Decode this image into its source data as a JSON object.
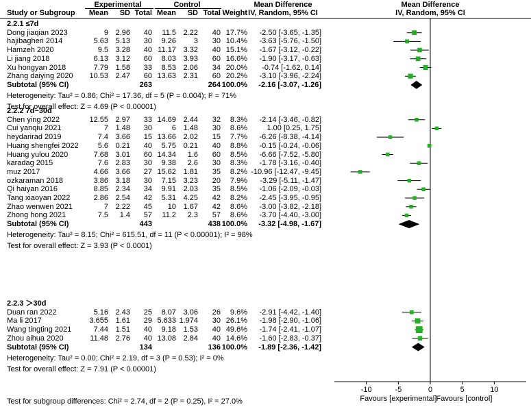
{
  "header": {
    "group_experimental": "Experimental",
    "group_control": "Control",
    "effect_title": "Mean Difference",
    "plot_title": "Mean Difference",
    "col_study": "Study or Subgroup",
    "col_mean_e": "Mean",
    "col_sd_e": "SD",
    "col_total_e": "Total",
    "col_mean_c": "Mean",
    "col_sd_c": "SD",
    "col_total_c": "Total",
    "col_weight": "Weight",
    "col_effect": "IV, Random, 95% CI",
    "col_plot": "IV, Random, 95% CI"
  },
  "subgroups": [
    {
      "title": "2.2.1 ≤7d",
      "studies": [
        {
          "name": "Dong jiaqian 2023",
          "me": "9",
          "sde": "2.96",
          "ne": "40",
          "mc": "11.5",
          "sdc": "2.22",
          "nc": "40",
          "w": "17.7%",
          "ci": "-2.50 [-3.65, -1.35]"
        },
        {
          "name": "hajibagheri 2014",
          "me": "5.63",
          "sde": "5.13",
          "ne": "30",
          "mc": "9.26",
          "sdc": "3",
          "nc": "30",
          "w": "10.4%",
          "ci": "-3.63 [-5.76, -1.50]"
        },
        {
          "name": "Hamzeh 2020",
          "me": "9.5",
          "sde": "3.28",
          "ne": "40",
          "mc": "11.17",
          "sdc": "3.32",
          "nc": "40",
          "w": "15.1%",
          "ci": "-1.67 [-3.12, -0.22]"
        },
        {
          "name": "Li jiang 2018",
          "me": "6.13",
          "sde": "3.12",
          "ne": "60",
          "mc": "8.03",
          "sdc": "3.93",
          "nc": "60",
          "w": "16.6%",
          "ci": "-1.90 [-3.17, -0.63]"
        },
        {
          "name": "Xu hongyan 2018",
          "me": "7.79",
          "sde": "1.58",
          "ne": "33",
          "mc": "8.53",
          "sdc": "2.06",
          "nc": "34",
          "w": "20.0%",
          "ci": "-0.74 [-1.62, 0.14]"
        },
        {
          "name": "Zhang daiying 2020",
          "me": "10.53",
          "sde": "2.47",
          "ne": "60",
          "mc": "13.63",
          "sdc": "2.31",
          "nc": "60",
          "w": "20.2%",
          "ci": "-3.10 [-3.96, -2.24]"
        }
      ],
      "subtotal": {
        "label": "Subtotal (95% CI)",
        "ne": "263",
        "nc": "264",
        "w": "100.0%",
        "ci": "-2.16 [-3.07, -1.26]"
      },
      "heterogeneity": "Heterogeneity: Tau² = 0.86; Chi² = 17.36, df = 5 (P = 0.004); I² = 71%",
      "overall": "Test for overall effect: Z = 4.69 (P < 0.00001)"
    },
    {
      "title": "2.2.2 7d~30d",
      "studies": [
        {
          "name": "Chen ying 2022",
          "me": "12.55",
          "sde": "2.97",
          "ne": "33",
          "mc": "14.69",
          "sdc": "2.44",
          "nc": "32",
          "w": "8.3%",
          "ci": "-2.14 [-3.46, -0.82]"
        },
        {
          "name": "Cui yanqiu 2021",
          "me": "7",
          "sde": "1.48",
          "ne": "30",
          "mc": "6",
          "sdc": "1.48",
          "nc": "30",
          "w": "8.6%",
          "ci": "1.00 [0.25, 1.75]"
        },
        {
          "name": "heydarirad 2019",
          "me": "7.4",
          "sde": "3.66",
          "ne": "15",
          "mc": "13.66",
          "sdc": "2.02",
          "nc": "15",
          "w": "7.7%",
          "ci": "-6.26 [-8.38, -4.14]"
        },
        {
          "name": "Huang shengfei 2022",
          "me": "5.6",
          "sde": "0.21",
          "ne": "40",
          "mc": "5.75",
          "sdc": "0.21",
          "nc": "40",
          "w": "8.8%",
          "ci": "-0.15 [-0.24, -0.06]"
        },
        {
          "name": "Huang yulou 2020",
          "me": "7.68",
          "sde": "3.01",
          "ne": "60",
          "mc": "14.34",
          "sdc": "1.6",
          "nc": "60",
          "w": "8.5%",
          "ci": "-6.66 [-7.52, -5.80]"
        },
        {
          "name": "karadag 2015",
          "me": "7.6",
          "sde": "2.83",
          "ne": "30",
          "mc": "9.38",
          "sdc": "2.6",
          "nc": "30",
          "w": "8.3%",
          "ci": "-1.78 [-3.16, -0.40]"
        },
        {
          "name": "muz 2017",
          "me": "4.66",
          "sde": "3.66",
          "ne": "27",
          "mc": "15.62",
          "sdc": "1.81",
          "nc": "35",
          "w": "8.2%",
          "ci": "-10.96 [-12.47, -9.45]"
        },
        {
          "name": "ozkaraman 2018",
          "me": "3.86",
          "sde": "3.18",
          "ne": "30",
          "mc": "7.15",
          "sdc": "3.23",
          "nc": "20",
          "w": "7.9%",
          "ci": "-3.29 [-5.11, -1.47]"
        },
        {
          "name": "Qi haiyan 2016",
          "me": "8.85",
          "sde": "2.34",
          "ne": "34",
          "mc": "9.91",
          "sdc": "2.03",
          "nc": "35",
          "w": "8.5%",
          "ci": "-1.06 [-2.09, -0.03]"
        },
        {
          "name": "Tang xiaoyan 2022",
          "me": "2.86",
          "sde": "2.54",
          "ne": "42",
          "mc": "5.31",
          "sdc": "4.25",
          "nc": "42",
          "w": "8.2%",
          "ci": "-2.45 [-3.95, -0.95]"
        },
        {
          "name": "Zhao wenwen 2021",
          "me": "7",
          "sde": "2.22",
          "ne": "45",
          "mc": "10",
          "sdc": "1.67",
          "nc": "42",
          "w": "8.6%",
          "ci": "-3.00 [-3.82, -2.18]"
        },
        {
          "name": "Zhong hong 2021",
          "me": "7.5",
          "sde": "1.4",
          "ne": "57",
          "mc": "11.2",
          "sdc": "2.3",
          "nc": "57",
          "w": "8.6%",
          "ci": "-3.70 [-4.40, -3.00]"
        }
      ],
      "subtotal": {
        "label": "Subtotal (95% CI)",
        "ne": "443",
        "nc": "438",
        "w": "100.0%",
        "ci": "-3.32 [-4.98, -1.67]"
      },
      "heterogeneity": "Heterogeneity: Tau² = 8.15; Chi² = 615.51, df = 11 (P < 0.00001); I² = 98%",
      "overall": "Test for overall effect: Z = 3.93 (P < 0.0001)"
    },
    {
      "title": "2.2.3 ＞30d",
      "studies": [
        {
          "name": "Duan ran 2022",
          "me": "5.16",
          "sde": "2.43",
          "ne": "25",
          "mc": "8.07",
          "sdc": "3.06",
          "nc": "26",
          "w": "9.6%",
          "ci": "-2.91 [-4.42, -1.40]"
        },
        {
          "name": "Ma li 2017",
          "me": "3.655",
          "sde": "1.61",
          "ne": "29",
          "mc": "5.633",
          "sdc": "1.974",
          "nc": "30",
          "w": "26.1%",
          "ci": "-1.98 [-2.90, -1.06]"
        },
        {
          "name": "Wang tingting 2021",
          "me": "7.44",
          "sde": "1.51",
          "ne": "40",
          "mc": "9.18",
          "sdc": "1.53",
          "nc": "40",
          "w": "49.6%",
          "ci": "-1.74 [-2.41, -1.07]"
        },
        {
          "name": "Zhou aihua 2020",
          "me": "11.48",
          "sde": "2.76",
          "ne": "40",
          "mc": "13.08",
          "sdc": "2.84",
          "nc": "40",
          "w": "14.6%",
          "ci": "-1.60 [-2.83, -0.37]"
        }
      ],
      "subtotal": {
        "label": "Subtotal (95% CI)",
        "ne": "134",
        "nc": "136",
        "w": "100.0%",
        "ci": "-1.89 [-2.36, -1.42]"
      },
      "heterogeneity": "Heterogeneity: Tau² = 0.00; Chi² = 2.19, df = 3 (P = 0.53); I² = 0%",
      "overall": "Test for overall effect: Z = 7.91 (P < 0.00001)"
    }
  ],
  "footer": "Test for subgroup differences: Chi² = 2.74, df = 2 (P = 0.25), I² = 27.0%",
  "chart_data": {
    "type": "forest",
    "title": "Mean Difference",
    "subtitle": "IV, Random, 95% CI",
    "xlim": [
      -15,
      15
    ],
    "xticks": [
      -10,
      -5,
      0,
      5,
      10
    ],
    "xtick_labels": [
      "-10",
      "-5",
      "0",
      "5",
      "10"
    ],
    "xlabel_left": "Favours [experimental]",
    "xlabel_right": "Favours [control]",
    "colors": {
      "study_marker": "#22b322",
      "summary_diamond": "#000000",
      "ci_line": "#000000"
    },
    "rows": [
      {
        "label": "Dong jiaqian 2023",
        "md": -2.5,
        "lo": -3.65,
        "hi": -1.35,
        "weight": 17.7
      },
      {
        "label": "hajibagheri 2014",
        "md": -3.63,
        "lo": -5.76,
        "hi": -1.5,
        "weight": 10.4
      },
      {
        "label": "Hamzeh 2020",
        "md": -1.67,
        "lo": -3.12,
        "hi": -0.22,
        "weight": 15.1
      },
      {
        "label": "Li jiang 2018",
        "md": -1.9,
        "lo": -3.17,
        "hi": -0.63,
        "weight": 16.6
      },
      {
        "label": "Xu hongyan 2018",
        "md": -0.74,
        "lo": -1.62,
        "hi": 0.14,
        "weight": 20.0
      },
      {
        "label": "Zhang daiying 2020",
        "md": -3.1,
        "lo": -3.96,
        "hi": -2.24,
        "weight": 20.2
      },
      {
        "label": "Subtotal 2.2.1",
        "md": -2.16,
        "lo": -3.07,
        "hi": -1.26,
        "summary": true
      },
      {
        "label": "Chen ying 2022",
        "md": -2.14,
        "lo": -3.46,
        "hi": -0.82,
        "weight": 8.3
      },
      {
        "label": "Cui yanqiu 2021",
        "md": 1.0,
        "lo": 0.25,
        "hi": 1.75,
        "weight": 8.6
      },
      {
        "label": "heydarirad 2019",
        "md": -6.26,
        "lo": -8.38,
        "hi": -4.14,
        "weight": 7.7
      },
      {
        "label": "Huang shengfei 2022",
        "md": -0.15,
        "lo": -0.24,
        "hi": -0.06,
        "weight": 8.8
      },
      {
        "label": "Huang yulou 2020",
        "md": -6.66,
        "lo": -7.52,
        "hi": -5.8,
        "weight": 8.5
      },
      {
        "label": "karadag 2015",
        "md": -1.78,
        "lo": -3.16,
        "hi": -0.4,
        "weight": 8.3
      },
      {
        "label": "muz 2017",
        "md": -10.96,
        "lo": -12.47,
        "hi": -9.45,
        "weight": 8.2
      },
      {
        "label": "ozkaraman 2018",
        "md": -3.29,
        "lo": -5.11,
        "hi": -1.47,
        "weight": 7.9
      },
      {
        "label": "Qi haiyan 2016",
        "md": -1.06,
        "lo": -2.09,
        "hi": -0.03,
        "weight": 8.5
      },
      {
        "label": "Tang xiaoyan 2022",
        "md": -2.45,
        "lo": -3.95,
        "hi": -0.95,
        "weight": 8.2
      },
      {
        "label": "Zhao wenwen 2021",
        "md": -3.0,
        "lo": -3.82,
        "hi": -2.18,
        "weight": 8.6
      },
      {
        "label": "Zhong hong 2021",
        "md": -3.7,
        "lo": -4.4,
        "hi": -3.0,
        "weight": 8.6
      },
      {
        "label": "Subtotal 2.2.2",
        "md": -3.32,
        "lo": -4.98,
        "hi": -1.67,
        "summary": true
      },
      {
        "label": "Duan ran 2022",
        "md": -2.91,
        "lo": -4.42,
        "hi": -1.4,
        "weight": 9.6
      },
      {
        "label": "Ma li 2017",
        "md": -1.98,
        "lo": -2.9,
        "hi": -1.06,
        "weight": 26.1
      },
      {
        "label": "Wang tingting 2021",
        "md": -1.74,
        "lo": -2.41,
        "hi": -1.07,
        "weight": 49.6
      },
      {
        "label": "Zhou aihua 2020",
        "md": -1.6,
        "lo": -2.83,
        "hi": -0.37,
        "weight": 14.6
      },
      {
        "label": "Subtotal 2.2.3",
        "md": -1.89,
        "lo": -2.36,
        "hi": -1.42,
        "summary": true
      }
    ]
  }
}
